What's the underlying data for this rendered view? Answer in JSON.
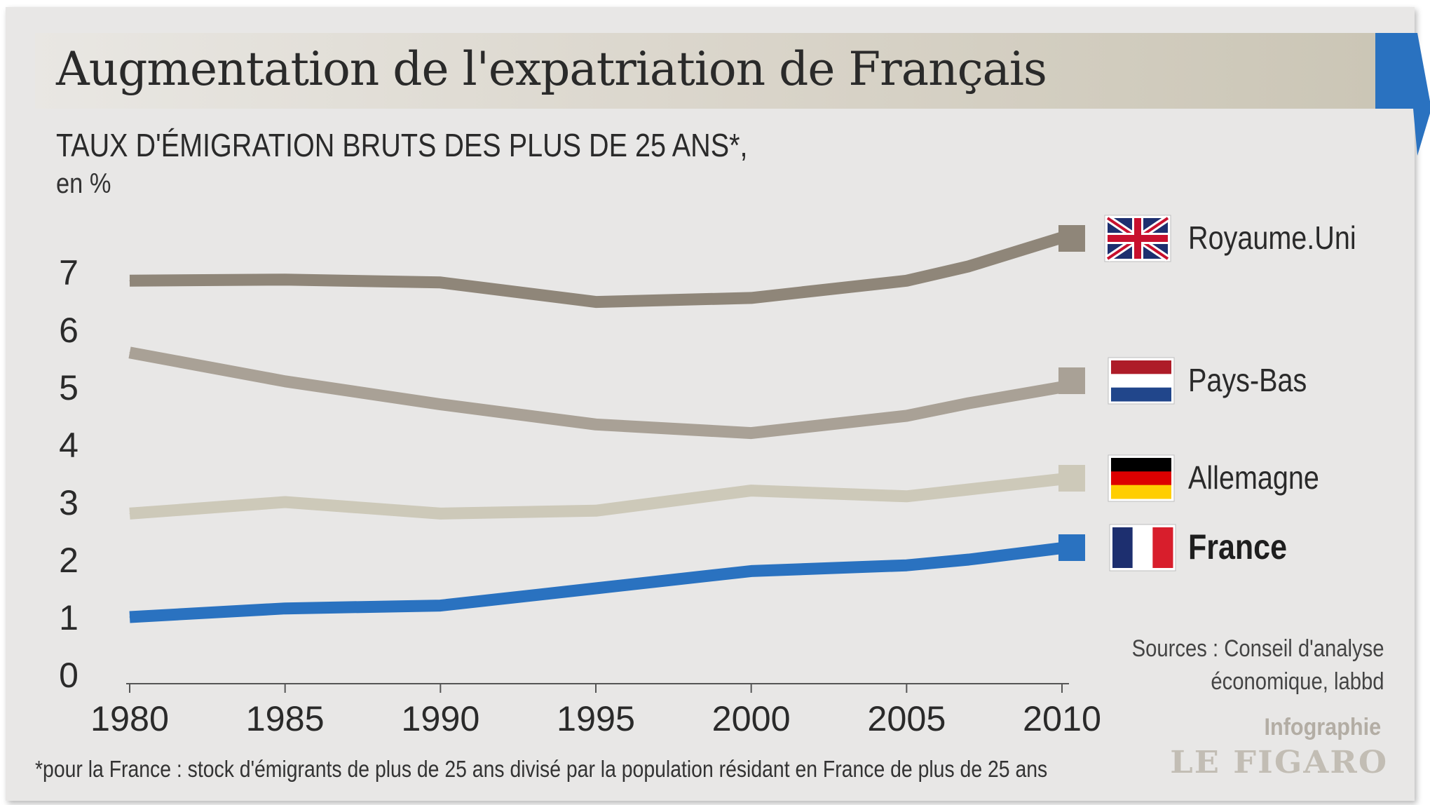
{
  "header": {
    "title": "Augmentation de l'expatriation de Français",
    "subtitle": "TAUX D'ÉMIGRATION BRUTS DES PLUS DE 25 ANS*,",
    "unit": "en %",
    "accent_color": "#2a72c0"
  },
  "chart_data": {
    "type": "line",
    "title": "Augmentation de l'expatriation de Français",
    "subtitle": "TAUX D'ÉMIGRATION BRUTS DES PLUS DE 25 ANS*,",
    "ylabel": "en %",
    "xlabel": "",
    "x": [
      1980,
      1985,
      1990,
      1995,
      2000,
      2005,
      2007,
      2010
    ],
    "x_ticks": [
      "1980",
      "1985",
      "1990",
      "1995",
      "2000",
      "2005",
      "2010"
    ],
    "y_ticks": [
      "0",
      "1",
      "2",
      "3",
      "4",
      "5",
      "6",
      "7"
    ],
    "ylim": [
      0,
      8
    ],
    "xlim": [
      1980,
      2010
    ],
    "grid": false,
    "legend_position": "right",
    "series": [
      {
        "name": "Royaume.Uni",
        "color": "#8f8679",
        "values": [
          6.85,
          6.87,
          6.82,
          6.48,
          6.55,
          6.85,
          7.1,
          7.6
        ],
        "emphasis": false,
        "flag": "uk-flag-icon"
      },
      {
        "name": "Pays-Bas",
        "color": "#a9a196",
        "values": [
          5.6,
          5.1,
          4.7,
          4.35,
          4.2,
          4.5,
          4.72,
          5.0
        ],
        "emphasis": false,
        "flag": "netherlands-flag-icon"
      },
      {
        "name": "Allemagne",
        "color": "#cdc9b9",
        "values": [
          2.8,
          3.0,
          2.8,
          2.85,
          3.2,
          3.1,
          3.22,
          3.4
        ],
        "emphasis": false,
        "flag": "germany-flag-icon"
      },
      {
        "name": "France",
        "color": "#2a72c0",
        "values": [
          1.0,
          1.15,
          1.2,
          1.5,
          1.8,
          1.9,
          2.0,
          2.2
        ],
        "emphasis": true,
        "flag": "france-flag-icon"
      }
    ]
  },
  "source": {
    "line1": "Sources : Conseil d'analyse",
    "line2": "économique, labbd"
  },
  "credit": {
    "label": "Infographie",
    "logo": "LE FIGARO"
  },
  "footnote": "*pour la France : stock d'émigrants de plus de 25 ans divisé par la population résidant en France de plus de 25 ans"
}
